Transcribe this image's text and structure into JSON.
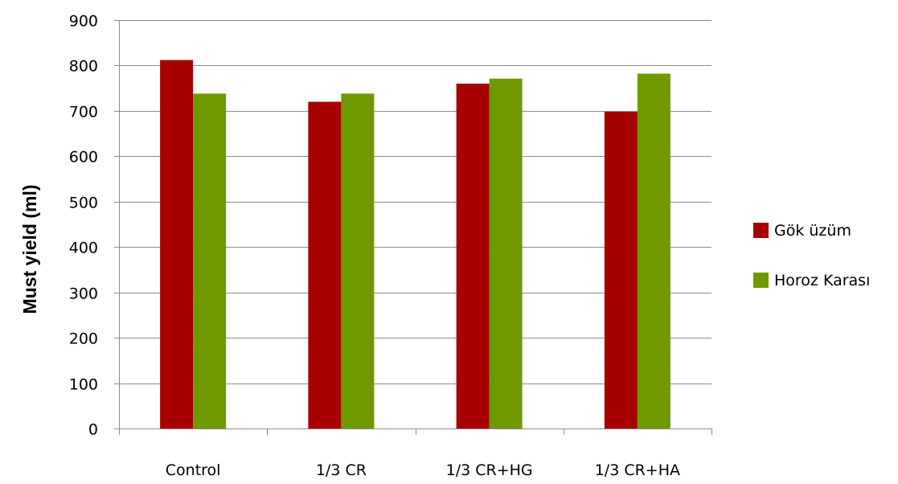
{
  "chart_data": {
    "type": "bar",
    "title": "",
    "xlabel": "",
    "ylabel": "Must yield (ml)",
    "categories": [
      "Control",
      "1/3 CR",
      "1/3 CR+HG",
      "1/3 CR+HA"
    ],
    "series": [
      {
        "name": "Gök üzüm",
        "color": "#a80000",
        "values": [
          812,
          720,
          760,
          698
        ]
      },
      {
        "name": "Horoz Karası",
        "color": "#6e9a00",
        "values": [
          738,
          738,
          771,
          782
        ]
      }
    ],
    "ylim": [
      0,
      900
    ],
    "yticks": [
      0,
      100,
      200,
      300,
      400,
      500,
      600,
      700,
      800,
      900
    ],
    "grid": true,
    "legend_position": "right"
  }
}
